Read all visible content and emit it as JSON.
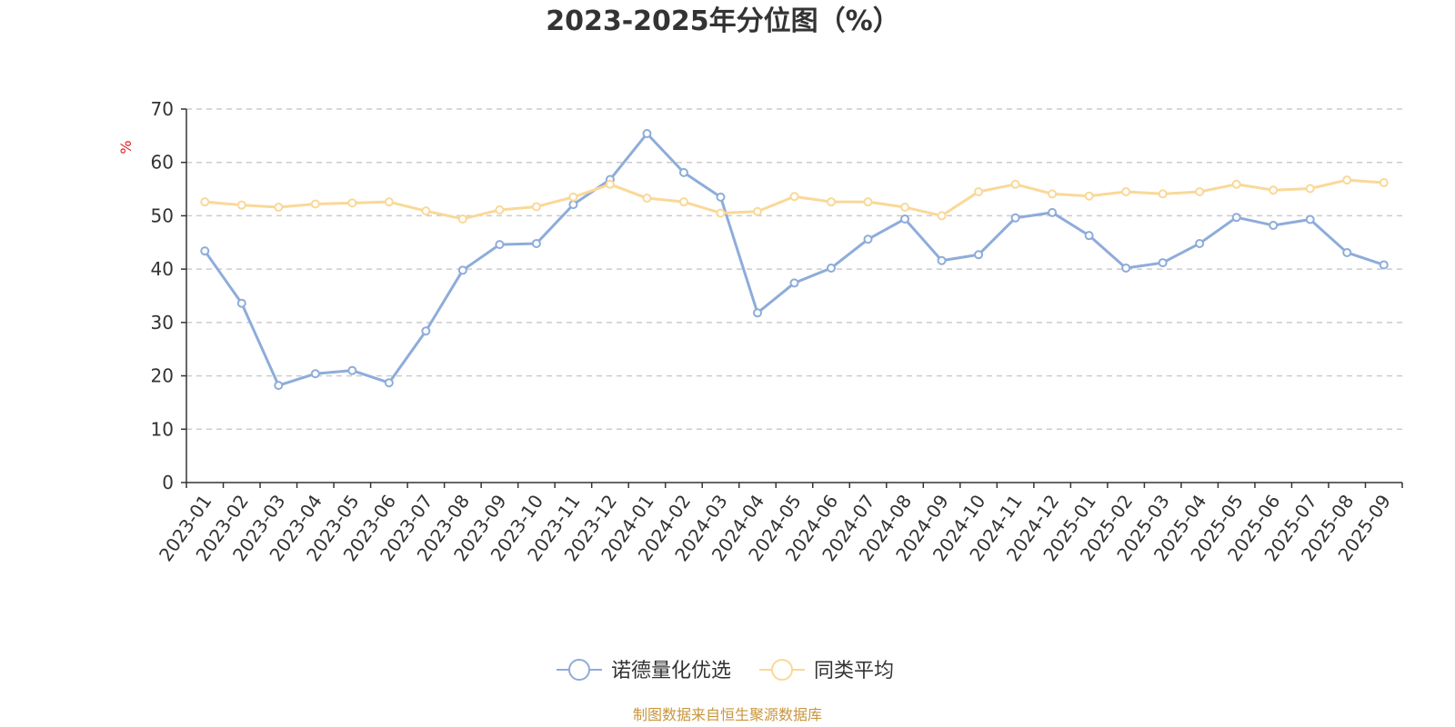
{
  "chart_data": {
    "type": "line",
    "title": "2023-2025年分位图（%）",
    "ylabel": "%",
    "ylim": [
      0,
      70
    ],
    "yticks": [
      "0",
      "10",
      "20",
      "30",
      "40",
      "50",
      "60",
      "70"
    ],
    "grid": true,
    "legend_position": "bottom",
    "categories": [
      "2023-01",
      "2023-02",
      "2023-03",
      "2023-04",
      "2023-05",
      "2023-06",
      "2023-07",
      "2023-08",
      "2023-09",
      "2023-10",
      "2023-11",
      "2023-12",
      "2024-01",
      "2024-02",
      "2024-03",
      "2024-04",
      "2024-05",
      "2024-06",
      "2024-07",
      "2024-08",
      "2024-09",
      "2024-10",
      "2024-11",
      "2024-12",
      "2025-01",
      "2025-02",
      "2025-03",
      "2025-04",
      "2025-05",
      "2025-06",
      "2025-07",
      "2025-08",
      "2025-09"
    ],
    "series": [
      {
        "name": "诺德量化优选",
        "color": "#8EACDA",
        "values": [
          43.4,
          33.6,
          18.2,
          20.4,
          21.0,
          18.7,
          28.4,
          39.8,
          44.6,
          44.8,
          52.1,
          56.8,
          65.4,
          58.1,
          53.5,
          31.8,
          37.4,
          40.2,
          45.6,
          49.4,
          41.6,
          42.7,
          49.6,
          50.6,
          46.3,
          40.2,
          41.2,
          44.8,
          49.7,
          48.2,
          49.3,
          43.1,
          40.8
        ]
      },
      {
        "name": "同类平均",
        "color": "#FAD898",
        "values": [
          52.6,
          52.0,
          51.6,
          52.2,
          52.4,
          52.6,
          50.9,
          49.4,
          51.1,
          51.7,
          53.5,
          55.9,
          53.3,
          52.6,
          50.5,
          50.8,
          53.6,
          52.6,
          52.6,
          51.6,
          50.0,
          54.5,
          55.9,
          54.1,
          53.7,
          54.5,
          54.1,
          54.5,
          55.9,
          54.8,
          55.1,
          56.7,
          56.2
        ]
      }
    ]
  },
  "unit_color": "#E02020",
  "source": {
    "text": "制图数据来自恒生聚源数据库",
    "color": "#C8963C"
  }
}
